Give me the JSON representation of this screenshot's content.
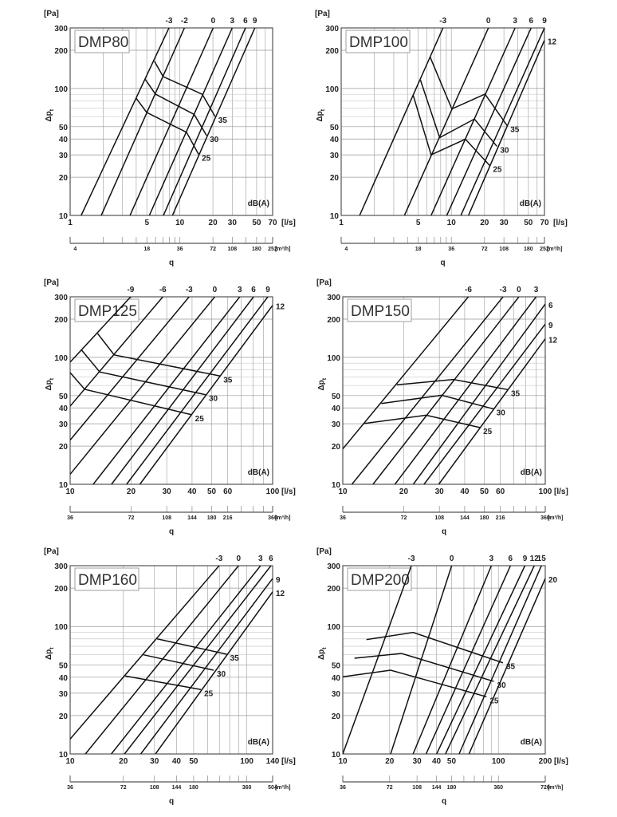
{
  "axis_labels": {
    "pa": "[Pa]",
    "dp": "Δp",
    "dp_sub": "t",
    "ls": "[l/s]",
    "m3h": "[m³/h]",
    "q": "q",
    "dba": "dB(A)"
  },
  "chart_data": [
    {
      "type": "line",
      "title": "DMP80",
      "xlim": [
        1,
        70
      ],
      "ylim": [
        10,
        300
      ],
      "xticks": [
        1,
        5,
        10,
        20,
        30,
        50,
        70
      ],
      "yticks": [
        10,
        20,
        30,
        40,
        50,
        100,
        200,
        300
      ],
      "m3h_ticks": [
        4,
        18,
        36,
        72,
        108,
        180,
        252
      ],
      "lines": [
        {
          "label": "-3",
          "points": [
            [
              1.26,
              10
            ],
            [
              7.95,
              300
            ]
          ]
        },
        {
          "label": "-2",
          "points": [
            [
              1.92,
              10
            ],
            [
              11.0,
              300
            ]
          ]
        },
        {
          "label": "0",
          "points": [
            [
              3.51,
              10
            ],
            [
              20.1,
              300
            ]
          ]
        },
        {
          "label": "3",
          "points": [
            [
              5.27,
              10
            ],
            [
              30,
              300
            ]
          ]
        },
        {
          "label": "6",
          "points": [
            [
              7.08,
              10
            ],
            [
              39.6,
              300
            ]
          ]
        },
        {
          "label": "9",
          "points": [
            [
              8.55,
              10
            ],
            [
              48.2,
              300
            ]
          ]
        }
      ],
      "noise": [
        {
          "label": "35",
          "points": [
            [
              5.86,
              164
            ],
            [
              7.04,
              124
            ],
            [
              16.0,
              90
            ],
            [
              20.9,
              60.3
            ]
          ]
        },
        {
          "label": "30",
          "points": [
            [
              4.84,
              117.8
            ],
            [
              5.98,
              90.3
            ],
            [
              13.5,
              62.4
            ],
            [
              17.5,
              42.6
            ]
          ]
        },
        {
          "label": "25",
          "points": [
            [
              4.0,
              83.7
            ],
            [
              4.98,
              64.8
            ],
            [
              11.5,
              45.2
            ],
            [
              14.8,
              30.3
            ]
          ]
        }
      ]
    },
    {
      "type": "line",
      "title": "DMP100",
      "xlim": [
        1,
        70
      ],
      "ylim": [
        10,
        300
      ],
      "xticks": [
        1,
        5,
        10,
        20,
        30,
        50,
        70
      ],
      "yticks": [
        10,
        20,
        30,
        40,
        50,
        100,
        200,
        300
      ],
      "m3h_ticks": [
        4,
        18,
        36,
        72,
        108,
        180,
        252
      ],
      "lines": [
        {
          "label": "-3",
          "points": [
            [
              1.47,
              10
            ],
            [
              8.4,
              300
            ]
          ]
        },
        {
          "label": "0",
          "points": [
            [
              3.75,
              10
            ],
            [
              21.7,
              300
            ]
          ]
        },
        {
          "label": "3",
          "points": [
            [
              6.55,
              10
            ],
            [
              37.9,
              300
            ]
          ]
        },
        {
          "label": "6",
          "points": [
            [
              9.09,
              10
            ],
            [
              53,
              300
            ]
          ]
        },
        {
          "label": "9",
          "points": [
            [
              12.2,
              10
            ],
            [
              70,
              300
            ]
          ]
        },
        {
          "label": "12",
          "points": [
            [
              14.3,
              10
            ],
            [
              70,
              240
            ]
          ]
        }
      ],
      "noise": [
        {
          "label": "35",
          "points": [
            [
              6.4,
              178
            ],
            [
              10.1,
              69
            ],
            [
              20.2,
              90.3
            ],
            [
              32.1,
              51
            ]
          ]
        },
        {
          "label": "30",
          "points": [
            [
              5.24,
              116.7
            ],
            [
              7.83,
              41
            ],
            [
              16.2,
              57.5
            ],
            [
              25.9,
              35
            ]
          ]
        },
        {
          "label": "25",
          "points": [
            [
              4.5,
              88.7
            ],
            [
              6.55,
              30
            ],
            [
              13.4,
              39.9
            ],
            [
              22.3,
              24.7
            ]
          ]
        }
      ]
    },
    {
      "type": "line",
      "title": "DMP125",
      "xlim": [
        10,
        100
      ],
      "ylim": [
        10,
        300
      ],
      "xticks": [
        10,
        20,
        30,
        40,
        50,
        60,
        100
      ],
      "yticks": [
        10,
        20,
        30,
        40,
        50,
        100,
        200,
        300
      ],
      "m3h_ticks": [
        36,
        72,
        108,
        144,
        180,
        216,
        360
      ],
      "lines": [
        {
          "label": "-9",
          "points": [
            [
              10,
              91.7
            ],
            [
              19.9,
              300
            ]
          ]
        },
        {
          "label": "-6",
          "points": [
            [
              10,
              41.3
            ],
            [
              28.7,
              300
            ]
          ]
        },
        {
          "label": "-3",
          "points": [
            [
              10,
              22.3
            ],
            [
              38.7,
              300
            ]
          ]
        },
        {
          "label": "0",
          "points": [
            [
              10,
              12.0
            ],
            [
              51.8,
              300
            ]
          ]
        },
        {
          "label": "3",
          "points": [
            [
              13.0,
              10
            ],
            [
              68.8,
              300
            ]
          ]
        },
        {
          "label": "6",
          "points": [
            [
              16.0,
              10
            ],
            [
              80.5,
              300
            ]
          ]
        },
        {
          "label": "9",
          "points": [
            [
              19.0,
              10
            ],
            [
              94.7,
              300
            ]
          ]
        },
        {
          "label": "12",
          "points": [
            [
              22.1,
              10
            ],
            [
              100,
              257
            ]
          ]
        }
      ],
      "noise": [
        {
          "label": "35",
          "points": [
            [
              13.67,
              154
            ],
            [
              16.5,
              104.5
            ],
            [
              55.1,
              71.3
            ]
          ]
        },
        {
          "label": "30",
          "points": [
            [
              11.4,
              114
            ],
            [
              14.0,
              76.7
            ],
            [
              46.7,
              50.8
            ]
          ]
        },
        {
          "label": "25",
          "points": [
            [
              10,
              75.9
            ],
            [
              11.8,
              56.0
            ],
            [
              39.9,
              35.3
            ]
          ]
        }
      ]
    },
    {
      "type": "line",
      "title": "DMP150",
      "xlim": [
        10,
        100
      ],
      "ylim": [
        10,
        300
      ],
      "xticks": [
        10,
        20,
        30,
        40,
        50,
        60,
        100
      ],
      "yticks": [
        10,
        20,
        30,
        40,
        50,
        100,
        200,
        300
      ],
      "m3h_ticks": [
        36,
        72,
        108,
        144,
        180,
        216,
        360
      ],
      "lines": [
        {
          "label": "-6",
          "points": [
            [
              10,
              19
            ],
            [
              41.7,
              300
            ]
          ]
        },
        {
          "label": "-3",
          "points": [
            [
              11.1,
              10
            ],
            [
              61.9,
              300
            ]
          ]
        },
        {
          "label": "0",
          "points": [
            [
              14.1,
              10
            ],
            [
              74.1,
              300
            ]
          ]
        },
        {
          "label": "3",
          "points": [
            [
              18.1,
              10
            ],
            [
              90.1,
              300
            ]
          ]
        },
        {
          "label": "6",
          "points": [
            [
              22.3,
              10
            ],
            [
              100,
              263
            ]
          ]
        },
        {
          "label": "9",
          "points": [
            [
              25.2,
              10
            ],
            [
              100,
              183
            ]
          ]
        },
        {
          "label": "12",
          "points": [
            [
              29.8,
              10
            ],
            [
              100,
              140
            ]
          ]
        }
      ],
      "noise": [
        {
          "label": "35",
          "points": [
            [
              18.5,
              60.8
            ],
            [
              35.2,
              66.9
            ],
            [
              65.3,
              55.7
            ]
          ]
        },
        {
          "label": "30",
          "points": [
            [
              15.5,
              43.3
            ],
            [
              30.8,
              50.3
            ],
            [
              55.3,
              39.3
            ]
          ]
        },
        {
          "label": "25",
          "points": [
            [
              12.7,
              30.1
            ],
            [
              25.8,
              35.0
            ],
            [
              47.6,
              28.0
            ]
          ]
        }
      ]
    },
    {
      "type": "line",
      "title": "DMP160",
      "xlim": [
        10,
        140
      ],
      "ylim": [
        10,
        300
      ],
      "xticks": [
        10,
        20,
        30,
        40,
        50,
        100,
        140
      ],
      "yticks": [
        10,
        20,
        30,
        40,
        50,
        100,
        200,
        300
      ],
      "m3h_ticks": [
        36,
        72,
        108,
        144,
        180,
        360,
        504
      ],
      "lines": [
        {
          "label": "-3",
          "points": [
            [
              10,
              13.1
            ],
            [
              69.7,
              300
            ]
          ]
        },
        {
          "label": "0",
          "points": [
            [
              12.2,
              10
            ],
            [
              89.8,
              300
            ]
          ]
        },
        {
          "label": "3",
          "points": [
            [
              17.1,
              10
            ],
            [
              119.6,
              300
            ]
          ]
        },
        {
          "label": "6",
          "points": [
            [
              20.3,
              10
            ],
            [
              137,
              300
            ]
          ]
        },
        {
          "label": "9",
          "points": [
            [
              25.1,
              10
            ],
            [
              140,
              238
            ]
          ]
        },
        {
          "label": "12",
          "points": [
            [
              30.4,
              10
            ],
            [
              140,
              187
            ]
          ]
        }
      ],
      "noise": [
        {
          "label": "35",
          "points": [
            [
              31.1,
              80.0
            ],
            [
              77.1,
              60.6
            ]
          ]
        },
        {
          "label": "30",
          "points": [
            [
              26.0,
              60.0
            ],
            [
              64.9,
              45.4
            ]
          ]
        },
        {
          "label": "25",
          "points": [
            [
              20.5,
              40.9
            ],
            [
              55.0,
              32.0
            ]
          ]
        }
      ]
    },
    {
      "type": "line",
      "title": "DMP200",
      "xlim": [
        10,
        200
      ],
      "ylim": [
        10,
        300
      ],
      "xticks": [
        10,
        20,
        30,
        40,
        50,
        100,
        200
      ],
      "yticks": [
        10,
        20,
        30,
        40,
        50,
        100,
        200,
        300
      ],
      "m3h_ticks": [
        36,
        72,
        108,
        144,
        180,
        360,
        720
      ],
      "lines": [
        {
          "label": "-3",
          "points": [
            [
              10,
              10
            ],
            [
              27.6,
              300
            ]
          ]
        },
        {
          "label": "0",
          "points": [
            [
              20.3,
              10
            ],
            [
              50.1,
              300
            ]
          ]
        },
        {
          "label": "3",
          "points": [
            [
              28.3,
              10
            ],
            [
              90.1,
              300
            ]
          ]
        },
        {
          "label": "6",
          "points": [
            [
              34.3,
              10
            ],
            [
              119.5,
              300
            ]
          ]
        },
        {
          "label": "9",
          "points": [
            [
              40.1,
              10
            ],
            [
              148,
              300
            ]
          ]
        },
        {
          "label": "12",
          "points": [
            [
              45.7,
              10
            ],
            [
              170,
              300
            ]
          ]
        },
        {
          "label": "15",
          "points": [
            [
              55.9,
              10
            ],
            [
              189,
              300
            ]
          ]
        },
        {
          "label": "20",
          "points": [
            [
              64.7,
              10
            ],
            [
              200,
              238
            ]
          ]
        }
      ],
      "noise": [
        {
          "label": "35",
          "points": [
            [
              14.2,
              78.9
            ],
            [
              28.3,
              89.8
            ],
            [
              107,
              51.9
            ]
          ]
        },
        {
          "label": "30",
          "points": [
            [
              11.9,
              56.4
            ],
            [
              23.8,
              61.5
            ],
            [
              93.5,
              37.1
            ]
          ]
        },
        {
          "label": "25",
          "points": [
            [
              10,
              40.3
            ],
            [
              20.3,
              45.4
            ],
            [
              83.9,
              28.1
            ]
          ]
        }
      ]
    }
  ]
}
